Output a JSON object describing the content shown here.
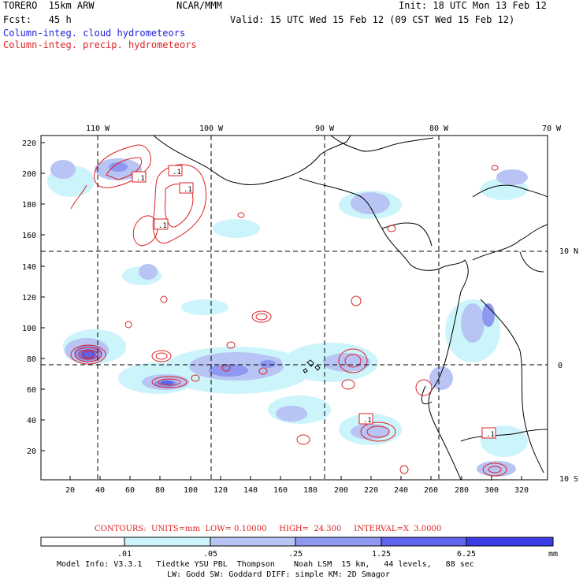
{
  "header": {
    "model_label": "TORERO  15km ARW",
    "center": "NCAR/MMM",
    "init": "Init: 18 UTC Mon 13 Feb 12",
    "fcst": "Fcst:   45 h",
    "valid": "Valid: 15 UTC Wed 15 Feb 12 (09 CST Wed 15 Feb 12)",
    "field_cloud": "Column-integ. cloud hydrometeors",
    "field_precip": "Column-integ. precip. hydrometeors"
  },
  "colors": {
    "cloud_text": "#2222dd",
    "precip_text": "#dd2222",
    "shade_1": "#ccf4fb",
    "shade_2": "#b8c4f4",
    "shade_3": "#8e98f0",
    "shade_4": "#6064ec",
    "shade_5": "#3c3ce6",
    "contour": "#dd2222"
  },
  "map": {
    "lon_labels": [
      "110 W",
      "100 W",
      "90 W",
      "80 W",
      "70 W"
    ],
    "lat_labels": [
      "10 N",
      "0",
      "10 S"
    ],
    "y_ticks": [
      "220",
      "200",
      "180",
      "160",
      "140",
      "120",
      "100",
      "80",
      "60",
      "40",
      "20"
    ],
    "x_ticks": [
      "20",
      "40",
      "60",
      "80",
      "100",
      "120",
      "140",
      "160",
      "180",
      "200",
      "220",
      "240",
      "260",
      "280",
      "300",
      "320"
    ],
    "contour_labels": [
      ".1",
      ".1",
      ".1",
      ".1",
      ".1",
      ".1"
    ]
  },
  "footer": {
    "contours": "CONTOURS:  UNITS=mm  LOW= 0.10000     HIGH=  24.300     INTERVAL=X  3.0000",
    "legend_ticks": [
      ".01",
      ".05",
      ".25",
      "1.25",
      "6.25"
    ],
    "legend_unit": "mm",
    "model_info_1": "Model Info: V3.3.1   Tiedtke YSU PBL  Thompson    Noah LSM  15 km,   44 levels,   88 sec",
    "model_info_2": "LW: Godd SW: Goddard DIFF: simple KM: 2D Smagor"
  }
}
